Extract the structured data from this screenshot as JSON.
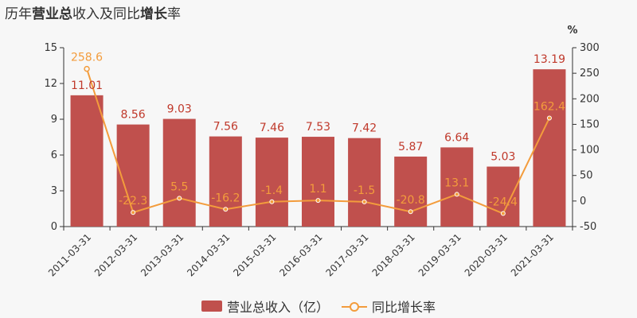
{
  "title": {
    "part1": "历年",
    "part2": "营业总",
    "part3": "收入及同比",
    "part4": "增长",
    "part5": "率"
  },
  "chart_data": {
    "type": "bar",
    "title": "历年营业总收入及同比增长率",
    "categories": [
      "2011-03-31",
      "2012-03-31",
      "2013-03-31",
      "2014-03-31",
      "2015-03-31",
      "2016-03-31",
      "2017-03-31",
      "2018-03-31",
      "2019-03-31",
      "2020-03-31",
      "2021-03-31"
    ],
    "series": [
      {
        "name": "营业总收入（亿）",
        "type": "bar",
        "axis": "left",
        "color": "#c0504d",
        "values": [
          11.01,
          8.56,
          9.03,
          7.56,
          7.46,
          7.53,
          7.42,
          5.87,
          6.64,
          5.03,
          13.19
        ],
        "labels": [
          "11.01",
          "8.56",
          "9.03",
          "7.56",
          "7.46",
          "7.53",
          "7.42",
          "5.87",
          "6.64",
          "5.03",
          "13.19"
        ]
      },
      {
        "name": "同比增长率",
        "type": "line",
        "axis": "right",
        "color": "#f39c3c",
        "values": [
          258.6,
          -22.3,
          5.5,
          -16.2,
          -1.4,
          1.1,
          -1.5,
          -20.8,
          13.1,
          -24.4,
          162.4
        ],
        "labels": [
          "258.6",
          "-22.3",
          "5.5",
          "-16.2",
          "-1.4",
          "1.1",
          "-1.5",
          "-20.8",
          "13.1",
          "-24.4",
          "162.4"
        ]
      }
    ],
    "y_left": {
      "min": 0,
      "max": 15,
      "ticks": [
        "0",
        "3",
        "6",
        "9",
        "12",
        "15"
      ]
    },
    "y_right": {
      "min": -50,
      "max": 300,
      "unit": "%",
      "ticks": [
        "-50",
        "0",
        "50",
        "100",
        "150",
        "200",
        "250",
        "300"
      ]
    },
    "grid": false,
    "legend_position": "bottom"
  },
  "legend": {
    "bar_label": "营业总收入（亿）",
    "line_label": "同比增长率"
  }
}
